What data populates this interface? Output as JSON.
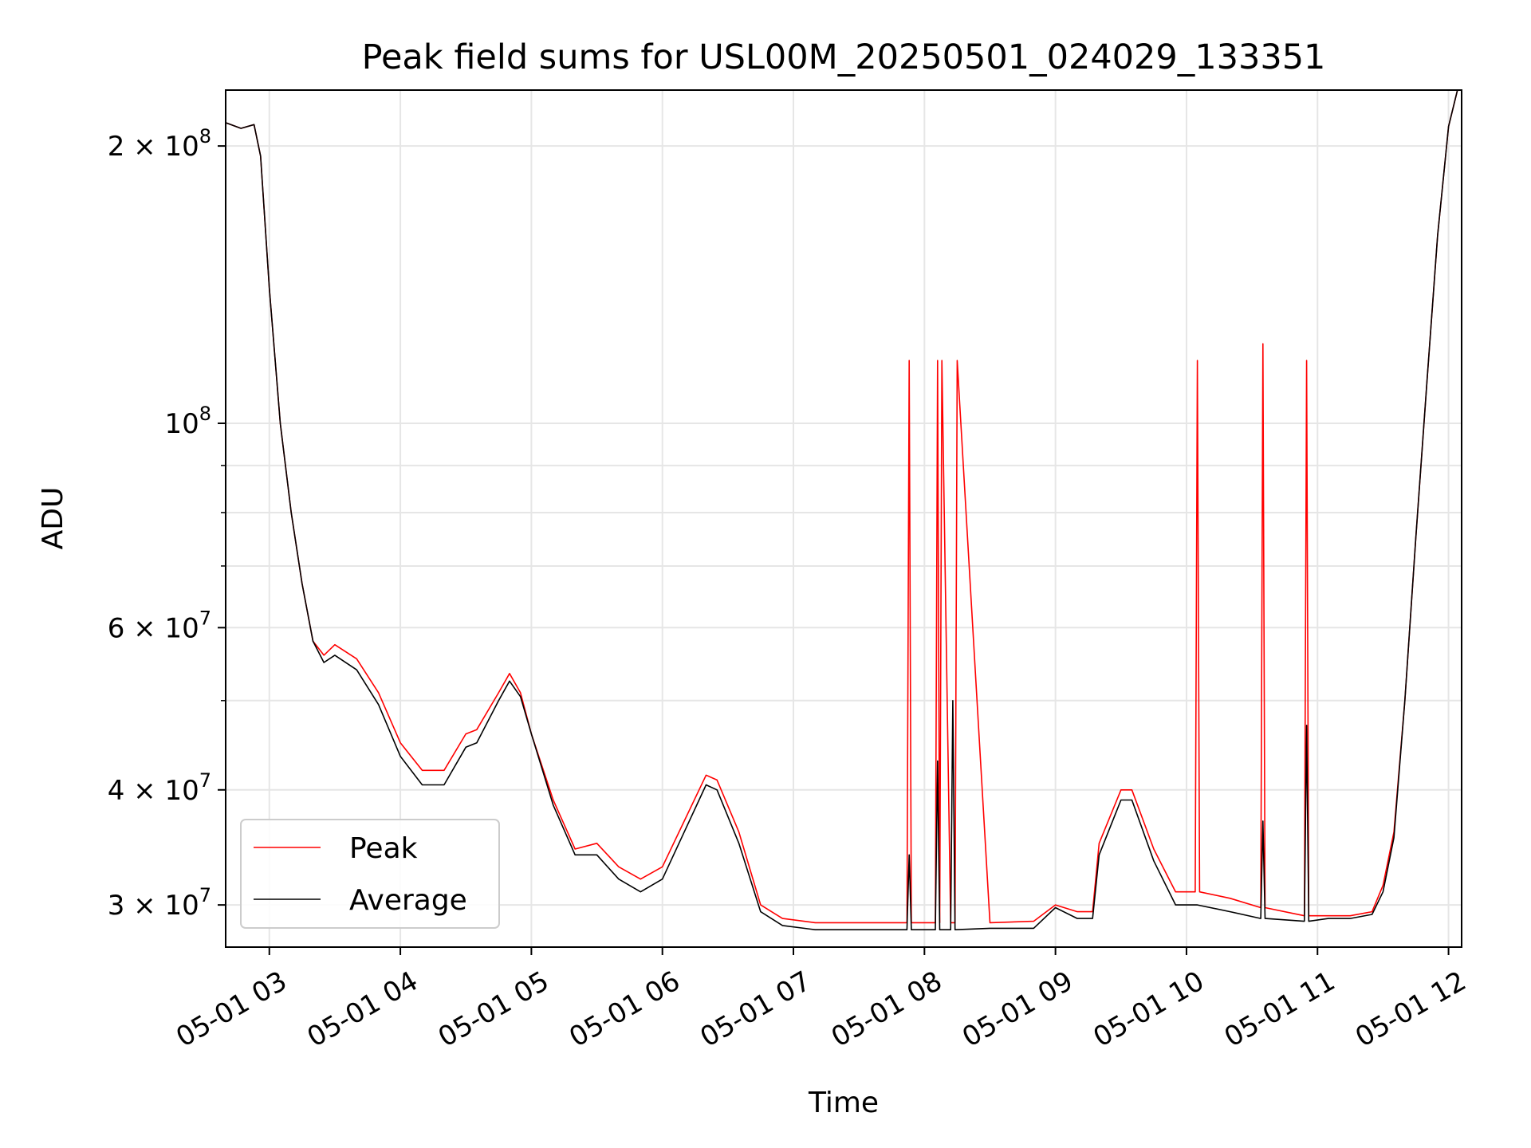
{
  "chart_data": {
    "type": "line",
    "title": "Peak field sums for USL00M_20250501_024029_133351",
    "xlabel": "Time",
    "ylabel": "ADU",
    "yscale": "log",
    "grid": true,
    "legend_position": "lower-left",
    "xlim": [
      "2025-05-01 02:40",
      "2025-05-01 12:06"
    ],
    "ylim": [
      27000000,
      230000000
    ],
    "x_ticks": [
      {
        "value": "2025-05-01 03:00",
        "label": "05-01 03"
      },
      {
        "value": "2025-05-01 04:00",
        "label": "05-01 04"
      },
      {
        "value": "2025-05-01 05:00",
        "label": "05-01 05"
      },
      {
        "value": "2025-05-01 06:00",
        "label": "05-01 06"
      },
      {
        "value": "2025-05-01 07:00",
        "label": "05-01 07"
      },
      {
        "value": "2025-05-01 08:00",
        "label": "05-01 08"
      },
      {
        "value": "2025-05-01 09:00",
        "label": "05-01 09"
      },
      {
        "value": "2025-05-01 10:00",
        "label": "05-01 10"
      },
      {
        "value": "2025-05-01 11:00",
        "label": "05-01 11"
      },
      {
        "value": "2025-05-01 12:00",
        "label": "05-01 12"
      }
    ],
    "y_ticks": [
      {
        "value": 30000000,
        "mantissa": "3 × 10",
        "exp": "7"
      },
      {
        "value": 40000000,
        "mantissa": "4 × 10",
        "exp": "7"
      },
      {
        "value": 60000000,
        "mantissa": "6 × 10",
        "exp": "7"
      },
      {
        "value": 100000000,
        "mantissa": "10",
        "exp": "8"
      },
      {
        "value": 200000000,
        "mantissa": "2 × 10",
        "exp": "8"
      }
    ],
    "y_minor_ticks": [
      50000000,
      70000000,
      80000000,
      90000000
    ],
    "series": [
      {
        "name": "Peak",
        "color": "#ff0000",
        "x": [
          "2025-05-01 02:40",
          "2025-05-01 02:47",
          "2025-05-01 02:53",
          "2025-05-01 02:56",
          "2025-05-01 03:00",
          "2025-05-01 03:05",
          "2025-05-01 03:10",
          "2025-05-01 03:15",
          "2025-05-01 03:20",
          "2025-05-01 03:25",
          "2025-05-01 03:30",
          "2025-05-01 03:40",
          "2025-05-01 03:50",
          "2025-05-01 04:00",
          "2025-05-01 04:10",
          "2025-05-01 04:20",
          "2025-05-01 04:30",
          "2025-05-01 04:35",
          "2025-05-01 04:45",
          "2025-05-01 04:50",
          "2025-05-01 04:55",
          "2025-05-01 05:00",
          "2025-05-01 05:10",
          "2025-05-01 05:20",
          "2025-05-01 05:30",
          "2025-05-01 05:40",
          "2025-05-01 05:50",
          "2025-05-01 06:00",
          "2025-05-01 06:10",
          "2025-05-01 06:20",
          "2025-05-01 06:25",
          "2025-05-01 06:35",
          "2025-05-01 06:45",
          "2025-05-01 06:55",
          "2025-05-01 07:10",
          "2025-05-01 07:30",
          "2025-05-01 07:52",
          "2025-05-01 07:53",
          "2025-05-01 07:54",
          "2025-05-01 07:55",
          "2025-05-01 08:05",
          "2025-05-01 08:06",
          "2025-05-01 08:07",
          "2025-05-01 08:08",
          "2025-05-01 08:12",
          "2025-05-01 08:13",
          "2025-05-01 08:14",
          "2025-05-01 08:15",
          "2025-05-01 08:30",
          "2025-05-01 08:50",
          "2025-05-01 09:00",
          "2025-05-01 09:10",
          "2025-05-01 09:17",
          "2025-05-01 09:20",
          "2025-05-01 09:30",
          "2025-05-01 09:35",
          "2025-05-01 09:45",
          "2025-05-01 09:55",
          "2025-05-01 10:04",
          "2025-05-01 10:05",
          "2025-05-01 10:06",
          "2025-05-01 10:20",
          "2025-05-01 10:34",
          "2025-05-01 10:35",
          "2025-05-01 10:36",
          "2025-05-01 10:54",
          "2025-05-01 10:55",
          "2025-05-01 10:56",
          "2025-05-01 11:05",
          "2025-05-01 11:15",
          "2025-05-01 11:25",
          "2025-05-01 11:30",
          "2025-05-01 11:35",
          "2025-05-01 11:40",
          "2025-05-01 11:45",
          "2025-05-01 11:50",
          "2025-05-01 11:55",
          "2025-05-01 12:00",
          "2025-05-01 12:06"
        ],
        "values": [
          212000000,
          209000000,
          211000000,
          195000000,
          140000000,
          100000000,
          80000000,
          67000000,
          58000000,
          56000000,
          57500000,
          55500000,
          51000000,
          45000000,
          42000000,
          42000000,
          46000000,
          46500000,
          51000000,
          53500000,
          51000000,
          46000000,
          39000000,
          34500000,
          35000000,
          33000000,
          32000000,
          33000000,
          37000000,
          41500000,
          41000000,
          36000000,
          30000000,
          29000000,
          28700000,
          28700000,
          28700000,
          117000000,
          28700000,
          28700000,
          28700000,
          117000000,
          28700000,
          117000000,
          28700000,
          28700000,
          28700000,
          117000000,
          28700000,
          28800000,
          30000000,
          29500000,
          29500000,
          35000000,
          40000000,
          40000000,
          34500000,
          31000000,
          31000000,
          117000000,
          31000000,
          30500000,
          29800000,
          122000000,
          29800000,
          29200000,
          117000000,
          29200000,
          29200000,
          29200000,
          29500000,
          31500000,
          36000000,
          50000000,
          75000000,
          110000000,
          160000000,
          210000000,
          240000000
        ]
      },
      {
        "name": "Average",
        "color": "#000000",
        "x": [
          "2025-05-01 02:40",
          "2025-05-01 02:47",
          "2025-05-01 02:53",
          "2025-05-01 02:56",
          "2025-05-01 03:00",
          "2025-05-01 03:05",
          "2025-05-01 03:10",
          "2025-05-01 03:15",
          "2025-05-01 03:20",
          "2025-05-01 03:25",
          "2025-05-01 03:30",
          "2025-05-01 03:40",
          "2025-05-01 03:50",
          "2025-05-01 04:00",
          "2025-05-01 04:10",
          "2025-05-01 04:20",
          "2025-05-01 04:30",
          "2025-05-01 04:35",
          "2025-05-01 04:45",
          "2025-05-01 04:50",
          "2025-05-01 04:55",
          "2025-05-01 05:00",
          "2025-05-01 05:10",
          "2025-05-01 05:20",
          "2025-05-01 05:30",
          "2025-05-01 05:40",
          "2025-05-01 05:50",
          "2025-05-01 06:00",
          "2025-05-01 06:10",
          "2025-05-01 06:20",
          "2025-05-01 06:25",
          "2025-05-01 06:35",
          "2025-05-01 06:45",
          "2025-05-01 06:55",
          "2025-05-01 07:10",
          "2025-05-01 07:30",
          "2025-05-01 07:52",
          "2025-05-01 07:53",
          "2025-05-01 07:54",
          "2025-05-01 08:05",
          "2025-05-01 08:06",
          "2025-05-01 08:07",
          "2025-05-01 08:12",
          "2025-05-01 08:13",
          "2025-05-01 08:14",
          "2025-05-01 08:30",
          "2025-05-01 08:50",
          "2025-05-01 09:00",
          "2025-05-01 09:10",
          "2025-05-01 09:17",
          "2025-05-01 09:20",
          "2025-05-01 09:30",
          "2025-05-01 09:35",
          "2025-05-01 09:45",
          "2025-05-01 09:55",
          "2025-05-01 10:05",
          "2025-05-01 10:20",
          "2025-05-01 10:34",
          "2025-05-01 10:35",
          "2025-05-01 10:36",
          "2025-05-01 10:54",
          "2025-05-01 10:55",
          "2025-05-01 10:56",
          "2025-05-01 11:05",
          "2025-05-01 11:15",
          "2025-05-01 11:25",
          "2025-05-01 11:30",
          "2025-05-01 11:35",
          "2025-05-01 11:40",
          "2025-05-01 11:45",
          "2025-05-01 11:50",
          "2025-05-01 11:55",
          "2025-05-01 12:00",
          "2025-05-01 12:06"
        ],
        "values": [
          212000000,
          209000000,
          211000000,
          195000000,
          140000000,
          100000000,
          80000000,
          67000000,
          58000000,
          55000000,
          56000000,
          54000000,
          49500000,
          43500000,
          40500000,
          40500000,
          44500000,
          45000000,
          50000000,
          52500000,
          50500000,
          46000000,
          38500000,
          34000000,
          34000000,
          32000000,
          31000000,
          32000000,
          36000000,
          40500000,
          40000000,
          35000000,
          29500000,
          28500000,
          28200000,
          28200000,
          28200000,
          34000000,
          28200000,
          28200000,
          43000000,
          28200000,
          28200000,
          50000000,
          28200000,
          28300000,
          28300000,
          29800000,
          29000000,
          29000000,
          34000000,
          39000000,
          39000000,
          33500000,
          30000000,
          30000000,
          29500000,
          29000000,
          37000000,
          29000000,
          28800000,
          47000000,
          28800000,
          29000000,
          29000000,
          29300000,
          31000000,
          35500000,
          50000000,
          75000000,
          110000000,
          160000000,
          210000000,
          240000000
        ]
      }
    ]
  }
}
